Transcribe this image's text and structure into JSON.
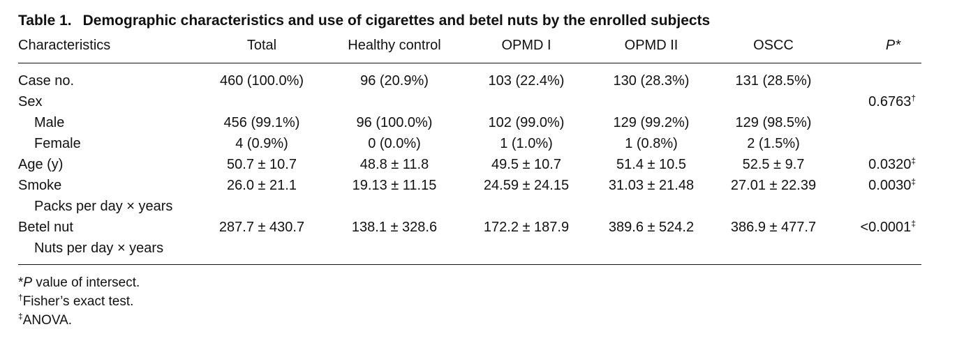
{
  "title": {
    "label": "Table 1.",
    "text": "Demographic characteristics and use of cigarettes and betel nuts by the enrolled subjects"
  },
  "table": {
    "headers": [
      "Characteristics",
      "Total",
      "Healthy control",
      "OPMD I",
      "OPMD II",
      "OSCC",
      "P*"
    ],
    "rows": [
      {
        "label": "Case no.",
        "indent": false,
        "cells": [
          "460 (100.0%)",
          "96 (20.9%)",
          "103 (22.4%)",
          "130 (28.3%)",
          "131 (28.5%)"
        ],
        "p": "",
        "p_mark": ""
      },
      {
        "label": "Sex",
        "indent": false,
        "cells": [
          "",
          "",
          "",
          "",
          ""
        ],
        "p": "0.6763",
        "p_mark": "†"
      },
      {
        "label": "Male",
        "indent": true,
        "cells": [
          "456 (99.1%)",
          "96 (100.0%)",
          "102 (99.0%)",
          "129 (99.2%)",
          "129 (98.5%)"
        ],
        "p": "",
        "p_mark": ""
      },
      {
        "label": "Female",
        "indent": true,
        "cells": [
          "4 (0.9%)",
          "0 (0.0%)",
          "1 (1.0%)",
          "1 (0.8%)",
          "2 (1.5%)"
        ],
        "p": "",
        "p_mark": ""
      },
      {
        "label": "Age (y)",
        "indent": false,
        "cells": [
          "50.7 ± 10.7",
          "48.8 ± 11.8",
          "49.5 ± 10.7",
          "51.4 ± 10.5",
          "52.5 ± 9.7"
        ],
        "p": "0.0320",
        "p_mark": "‡"
      },
      {
        "label": "Smoke",
        "indent": false,
        "cells": [
          "26.0 ± 21.1",
          "19.13 ± 11.15",
          "24.59 ± 24.15",
          "31.03 ± 21.48",
          "27.01 ± 22.39"
        ],
        "p": "0.0030",
        "p_mark": "‡"
      },
      {
        "label": "Packs per day × years",
        "indent": true,
        "cells": [
          "",
          "",
          "",
          "",
          ""
        ],
        "p": "",
        "p_mark": ""
      },
      {
        "label": "Betel nut",
        "indent": false,
        "cells": [
          "287.7 ± 430.7",
          "138.1 ± 328.6",
          "172.2 ± 187.9",
          "389.6 ± 524.2",
          "386.9 ± 477.7"
        ],
        "p": "<0.0001",
        "p_mark": "‡"
      },
      {
        "label": "Nuts per day × years",
        "indent": true,
        "cells": [
          "",
          "",
          "",
          "",
          ""
        ],
        "p": "",
        "p_mark": ""
      }
    ]
  },
  "footnotes": [
    {
      "mark": "*",
      "italic": "P",
      "text": " value of intersect."
    },
    {
      "mark": "†",
      "italic": "",
      "text": "Fisher’s exact test."
    },
    {
      "mark": "‡",
      "italic": "",
      "text": "ANOVA."
    }
  ]
}
